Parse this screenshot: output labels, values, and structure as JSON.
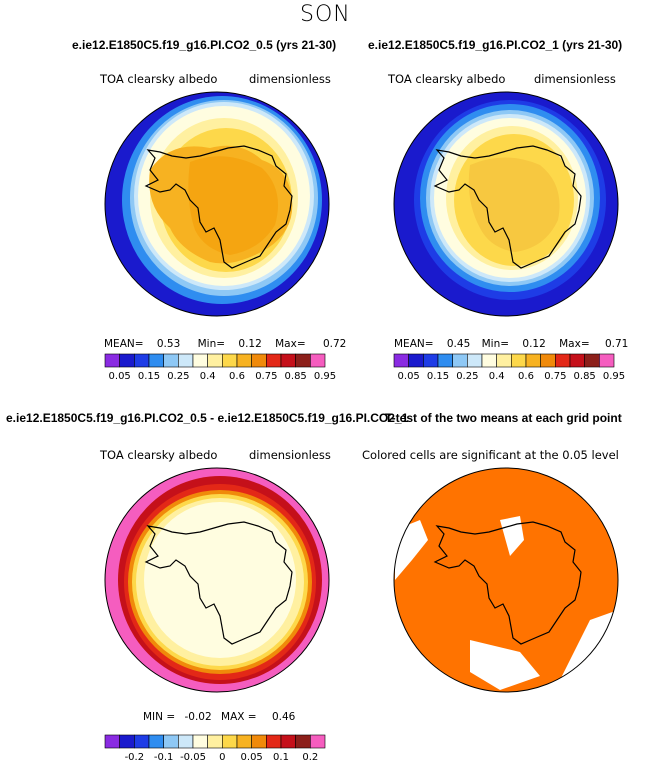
{
  "season": "SON",
  "panels": {
    "p1": {
      "title": "e.ie12.E1850C5.f19_g16.PI.CO2_0.5 (yrs 21-30)",
      "var_label": "TOA clearsky albedo",
      "units_label": "dimensionless",
      "mean_label": "MEAN=",
      "mean": "0.53",
      "min_label": "Min=",
      "min": "0.12",
      "max_label": "Max=",
      "max": "0.72"
    },
    "p2": {
      "title": "e.ie12.E1850C5.f19_g16.PI.CO2_1 (yrs 21-30)",
      "var_label": "TOA clearsky albedo",
      "units_label": "dimensionless",
      "mean_label": "MEAN=",
      "mean": "0.45",
      "min_label": "Min=",
      "min": "0.12",
      "max_label": "Max=",
      "max": "0.71"
    },
    "p3": {
      "title": "e.ie12.E1850C5.f19_g16.PI.CO2_0.5 - e.ie12.E1850C5.f19_g16.PI.CO2_1",
      "var_label": "TOA clearsky albedo",
      "units_label": "dimensionless",
      "min_label": "MIN =",
      "min": "-0.02",
      "max_label": "MAX =",
      "max": "0.46"
    },
    "p4": {
      "title": "T-test of the two means at each grid point",
      "note": "Colored cells are significant at the 0.05 level"
    }
  },
  "chart_data": [
    {
      "type": "heatmap",
      "projection": "south-polar-stereographic",
      "title": "e.ie12.E1850C5.f19_g16.PI.CO2_0.5 (yrs 21-30)",
      "variable": "TOA clearsky albedo",
      "units": "dimensionless",
      "mean": 0.53,
      "min": 0.12,
      "max": 0.72,
      "colorbar_ticks": [
        "0.05",
        "0.15",
        "0.25",
        "0.4",
        "0.6",
        "0.75",
        "0.85",
        "0.95"
      ],
      "colors": [
        "#8a2be2",
        "#1a1acd",
        "#1e3ce6",
        "#2f8df0",
        "#8ec8f5",
        "#cde8f9",
        "#fffde0",
        "#fff0a0",
        "#fdd84a",
        "#f7b221",
        "#f08a0a",
        "#e32817",
        "#c5101a",
        "#8c1f1a",
        "#f55dbf"
      ]
    },
    {
      "type": "heatmap",
      "projection": "south-polar-stereographic",
      "title": "e.ie12.E1850C5.f19_g16.PI.CO2_1 (yrs 21-30)",
      "variable": "TOA clearsky albedo",
      "units": "dimensionless",
      "mean": 0.45,
      "min": 0.12,
      "max": 0.71,
      "colorbar_ticks": [
        "0.05",
        "0.15",
        "0.25",
        "0.4",
        "0.6",
        "0.75",
        "0.85",
        "0.95"
      ]
    },
    {
      "type": "heatmap",
      "projection": "south-polar-stereographic",
      "title": "e.ie12.E1850C5.f19_g16.PI.CO2_0.5 - e.ie12.E1850C5.f19_g16.PI.CO2_1",
      "variable": "TOA clearsky albedo",
      "units": "dimensionless",
      "min": -0.02,
      "max": 0.46,
      "colorbar_ticks": [
        "-0.2",
        "-0.1",
        "-0.05",
        "0",
        "0.05",
        "0.1",
        "0.2"
      ],
      "colors": [
        "#8a2be2",
        "#1a1acd",
        "#1e3ce6",
        "#2f8df0",
        "#8ec8f5",
        "#cde8f9",
        "#fffde0",
        "#fff0a0",
        "#fdd84a",
        "#f7b221",
        "#f08a0a",
        "#e32817",
        "#c5101a",
        "#8c1f1a",
        "#f55dbf"
      ]
    },
    {
      "type": "heatmap",
      "projection": "south-polar-stereographic",
      "title": "T-test of the two means at each grid point",
      "note": "Colored cells are significant at the 0.05 level",
      "significant_color": "#ff7300"
    }
  ]
}
